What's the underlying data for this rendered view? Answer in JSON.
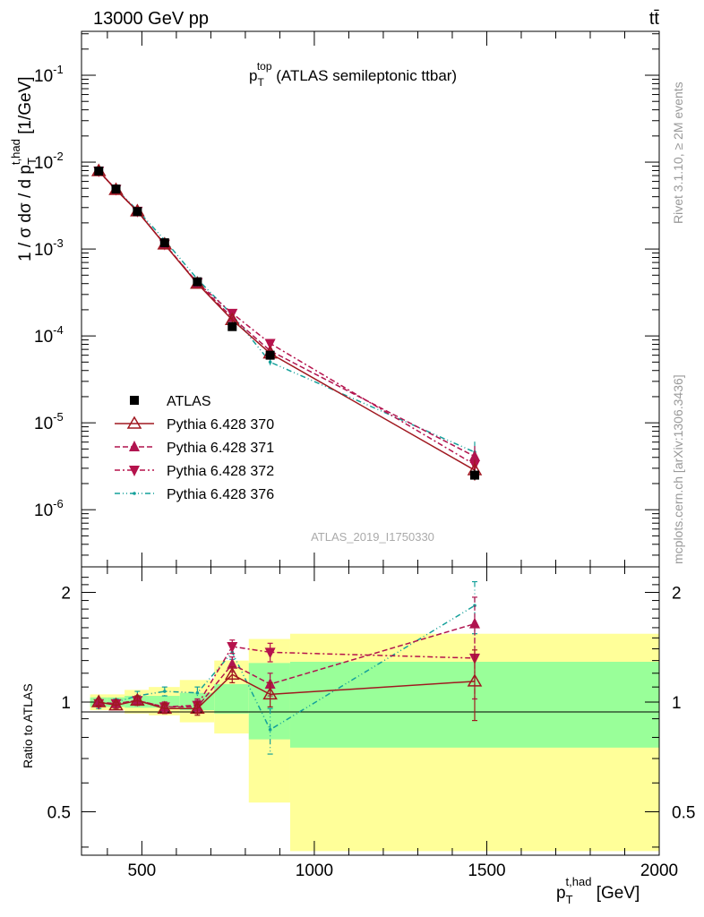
{
  "header": {
    "left": "13000 GeV pp",
    "right": "tt̄"
  },
  "main_title": {
    "base": "p",
    "sub": "T",
    "sup": "top",
    "rest": " (ATLAS semileptonic ttbar)"
  },
  "side_text": {
    "rivet": "Rivet 3.1.10, ≥ 2M events",
    "mcplots": "mcplots.cern.ch [arXiv:1306.3436]"
  },
  "watermark": "ATLAS_2019_I1750330",
  "axes": {
    "ylabel_main": "1 / σ dσ / d p",
    "ylabel_main_sub": "T",
    "ylabel_main_sup": "t,had",
    "ylabel_main_unit": " [1/GeV]",
    "ylabel_ratio": "Ratio to ATLAS",
    "xlabel_base": "p",
    "xlabel_sub": "T",
    "xlabel_sup": "t,had",
    "xlabel_unit": " [GeV]",
    "xticks": [
      "500",
      "1000",
      "1500",
      "2000"
    ],
    "main_yticks": [
      {
        "exp": "-1"
      },
      {
        "exp": "-2"
      },
      {
        "exp": "-3"
      },
      {
        "exp": "-4"
      },
      {
        "exp": "-5"
      },
      {
        "exp": "-6"
      }
    ],
    "ratio_yticks": [
      "2",
      "1",
      "0.5"
    ]
  },
  "legend": [
    {
      "label": "ATLAS"
    },
    {
      "label": "Pythia 6.428 370"
    },
    {
      "label": "Pythia 6.428 371"
    },
    {
      "label": "Pythia 6.428 372"
    },
    {
      "label": "Pythia 6.428 376"
    }
  ],
  "colors": {
    "data": "#000000",
    "s370": "#a01820",
    "s371": "#b0144f",
    "s372": "#b5124c",
    "s376": "#14a09a",
    "band_inner": "#99ff99",
    "band_outer": "#ffff99"
  },
  "chart_data": [
    {
      "type": "scatter",
      "panel": "main",
      "scale": "log",
      "xlim": [
        325,
        2000
      ],
      "ylim": [
        2.2e-07,
        0.32
      ],
      "x_bins": [
        [
          350,
          400
        ],
        [
          400,
          450
        ],
        [
          450,
          520
        ],
        [
          520,
          610
        ],
        [
          610,
          710
        ],
        [
          710,
          810
        ],
        [
          810,
          930
        ],
        [
          930,
          2000
        ]
      ],
      "x": [
        375,
        425,
        487,
        566,
        661,
        762,
        872,
        1465
      ],
      "series": [
        {
          "name": "ATLAS",
          "key": "data",
          "values": [
            0.0079,
            0.0049,
            0.0027,
            0.00118,
            0.00042,
            0.000128,
            6e-05,
            2.5e-06
          ]
        },
        {
          "name": "Pythia 6.428 370",
          "key": "s370",
          "values": [
            0.0079,
            0.0048,
            0.00272,
            0.00113,
            0.0004,
            0.000153,
            6.3e-05,
            2.85e-06
          ]
        },
        {
          "name": "Pythia 6.428 371",
          "key": "s371",
          "values": [
            0.0079,
            0.00485,
            0.00272,
            0.00114,
            0.000405,
            0.000163,
            6.75e-05,
            4.1e-06
          ]
        },
        {
          "name": "Pythia 6.428 372",
          "key": "s372",
          "values": [
            0.0079,
            0.00485,
            0.00272,
            0.00114,
            0.00041,
            0.000182,
            8.2e-05,
            3.3e-06
          ]
        },
        {
          "name": "Pythia 6.428 376",
          "key": "s376",
          "values": [
            0.0077,
            0.0049,
            0.0028,
            0.00127,
            0.00045,
            0.000175,
            5e-05,
            4.6e-06
          ]
        }
      ]
    },
    {
      "type": "scatter",
      "panel": "ratio",
      "scale": "log",
      "xlim": [
        325,
        2000
      ],
      "ylim": [
        0.38,
        2.35
      ],
      "x": [
        375,
        425,
        487,
        566,
        661,
        762,
        872,
        1465
      ],
      "bands": {
        "edges": [
          350,
          400,
          450,
          520,
          610,
          710,
          810,
          930,
          2000
        ],
        "inner": [
          [
            0.97,
            1.03
          ],
          [
            0.97,
            1.03
          ],
          [
            0.965,
            1.04
          ],
          [
            0.965,
            1.04
          ],
          [
            0.95,
            1.06
          ],
          [
            0.93,
            1.12
          ],
          [
            0.79,
            1.28
          ],
          [
            0.75,
            1.29
          ]
        ],
        "outer": [
          [
            0.95,
            1.05
          ],
          [
            0.95,
            1.05
          ],
          [
            0.93,
            1.08
          ],
          [
            0.92,
            1.1
          ],
          [
            0.88,
            1.15
          ],
          [
            0.82,
            1.3
          ],
          [
            0.53,
            1.49
          ],
          [
            0.39,
            1.54
          ]
        ]
      },
      "series": [
        {
          "name": "Pythia 6.428 370",
          "key": "s370",
          "values": [
            1.0,
            0.98,
            1.01,
            0.96,
            0.96,
            1.19,
            1.05,
            1.14
          ],
          "err": [
            0.02,
            0.02,
            0.03,
            0.03,
            0.04,
            0.06,
            0.08,
            0.25
          ]
        },
        {
          "name": "Pythia 6.428 371",
          "key": "s371",
          "values": [
            1.0,
            0.99,
            1.01,
            0.97,
            0.97,
            1.27,
            1.12,
            1.64
          ],
          "err": [
            0.02,
            0.02,
            0.03,
            0.03,
            0.04,
            0.06,
            0.08,
            0.3
          ]
        },
        {
          "name": "Pythia 6.428 372",
          "key": "s372",
          "values": [
            0.99,
            0.99,
            1.01,
            0.97,
            0.98,
            1.42,
            1.37,
            1.32
          ],
          "err": [
            0.02,
            0.02,
            0.03,
            0.03,
            0.04,
            0.06,
            0.08,
            0.3
          ]
        },
        {
          "name": "Pythia 6.428 376",
          "key": "s376",
          "values": [
            0.98,
            1.0,
            1.04,
            1.07,
            1.06,
            1.37,
            0.84,
            1.84
          ],
          "err": [
            0.02,
            0.02,
            0.03,
            0.03,
            0.04,
            0.06,
            0.12,
            0.3
          ]
        }
      ]
    }
  ]
}
